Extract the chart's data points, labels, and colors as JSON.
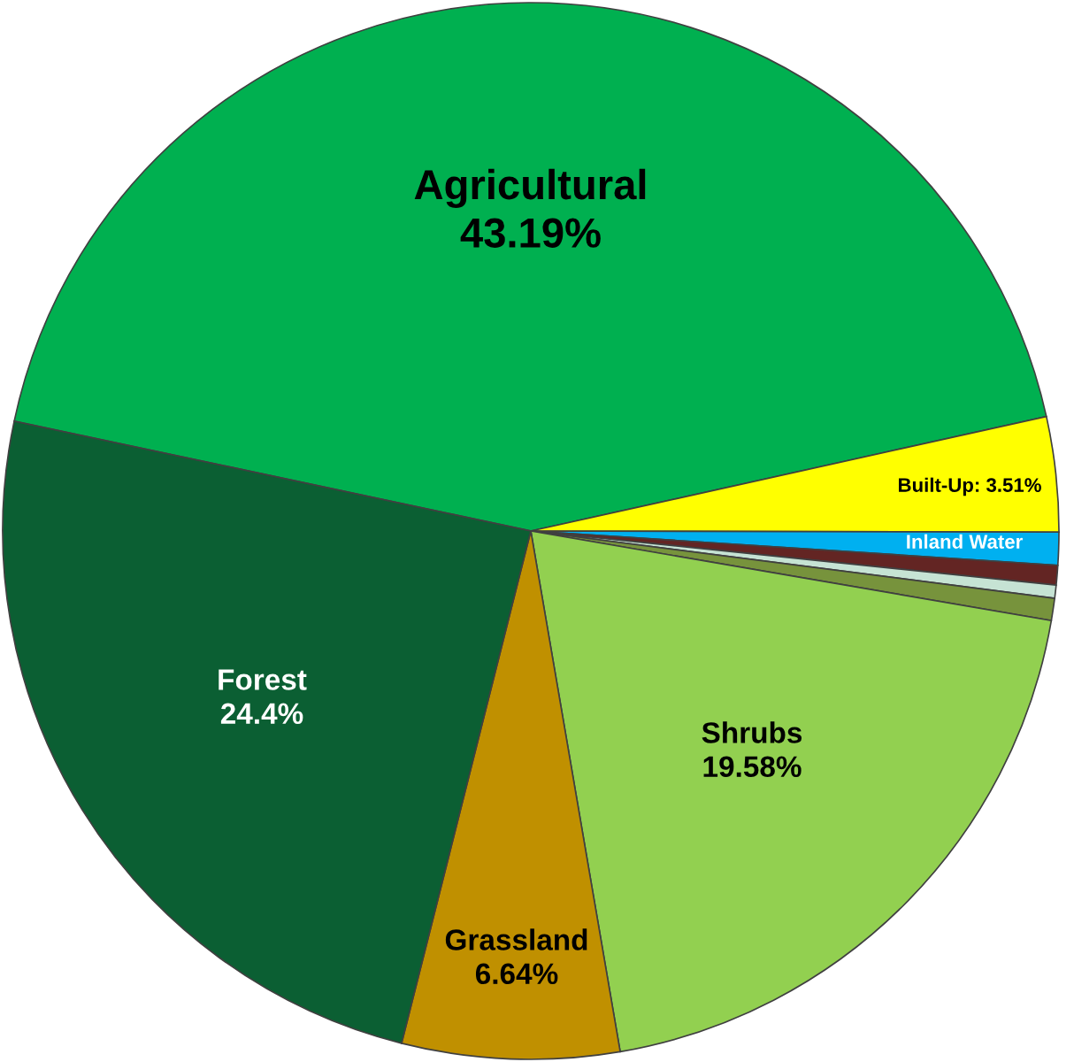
{
  "chart_data": {
    "type": "pie",
    "categories": [
      "Agricultural",
      "Built-Up",
      "Inland Water",
      null,
      null,
      null,
      "Shrubs",
      "Grassland",
      "Forest"
    ],
    "values": [
      43.19,
      3.51,
      1.0,
      0.6,
      0.4,
      0.68,
      19.58,
      6.64,
      24.4
    ],
    "value_labels": [
      "43.19%",
      "3.51%",
      null,
      null,
      null,
      null,
      "19.58%",
      "6.64%",
      "24.4%"
    ],
    "colors": [
      "#00b050",
      "#ffff00",
      "#00b0f0",
      "#632523",
      "#c6e3d4",
      "#77933c",
      "#92d050",
      "#c09000",
      "#0b5f33"
    ],
    "legend": false
  }
}
